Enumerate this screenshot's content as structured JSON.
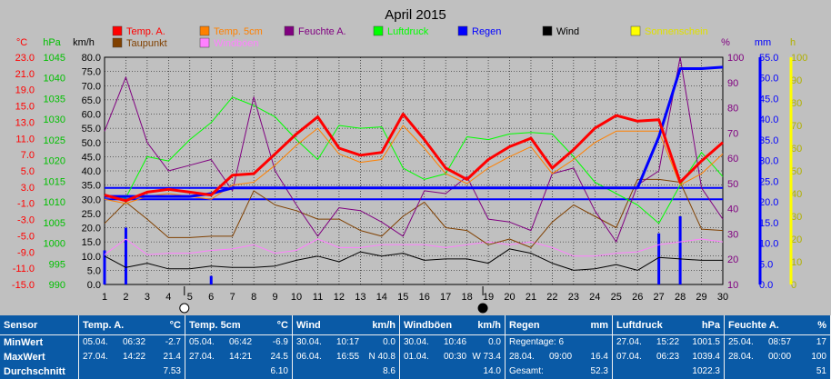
{
  "chart_data": {
    "type": "line",
    "title": "April 2015",
    "x": [
      1,
      2,
      3,
      4,
      5,
      6,
      7,
      8,
      9,
      10,
      11,
      12,
      13,
      14,
      15,
      16,
      17,
      18,
      19,
      20,
      21,
      22,
      23,
      24,
      25,
      26,
      27,
      28,
      29,
      30
    ],
    "axes": {
      "temp_c": {
        "label": "°C",
        "ticks": [
          "23.0",
          "21.0",
          "19.0",
          "15.0",
          "13.0",
          "11.0",
          "7.0",
          "5.0",
          "3.0",
          "-1.0",
          "-3.0",
          "-5.0",
          "-9.0",
          "-11.0",
          "-15.0"
        ],
        "color": "#ff0000"
      },
      "pressure_hpa": {
        "label": "hPa",
        "ticks": [
          "1045",
          "1040",
          "1035",
          "1030",
          "1025",
          "1020",
          "1015",
          "1010",
          "1005",
          "1000",
          "995",
          "990"
        ],
        "color": "#00c000"
      },
      "wind_kmh": {
        "label": "km/h",
        "ticks": [
          "80.0",
          "75.0",
          "70.0",
          "65.0",
          "60.0",
          "55.0",
          "50.0",
          "45.0",
          "40.0",
          "35.0",
          "30.0",
          "25.0",
          "20.0",
          "15.0",
          "10.0",
          "5.0",
          "0.0"
        ],
        "ylim": [
          0,
          80
        ],
        "color": "#000000"
      },
      "humidity_pct": {
        "label": "%",
        "ticks": [
          "100",
          "90",
          "80",
          "70",
          "60",
          "50",
          "40",
          "30",
          "20",
          "10"
        ],
        "ylim": [
          10,
          100
        ],
        "color": "#800080"
      },
      "rain_mm": {
        "label": "mm",
        "ticks": [
          "55.0",
          "50.0",
          "45.0",
          "40.0",
          "35.0",
          "30.0",
          "25.0",
          "20.0",
          "15.0",
          "10.0",
          "5.0",
          "0.0"
        ],
        "ylim": [
          0,
          55
        ],
        "color": "#0000ff"
      },
      "sun_h": {
        "label": "h",
        "ticks": [
          "100",
          "90",
          "80",
          "70",
          "60",
          "50",
          "40",
          "30",
          "20",
          "10",
          "0"
        ],
        "ylim": [
          0,
          100
        ],
        "color": "#ffff00"
      }
    },
    "legend": [
      {
        "name": "Temp. A.",
        "color": "#ff0000"
      },
      {
        "name": "Temp. 5cm",
        "color": "#ff8000"
      },
      {
        "name": "Feuchte A.",
        "color": "#800080"
      },
      {
        "name": "Luftdruck",
        "color": "#00ff00"
      },
      {
        "name": "Regen",
        "color": "#0000ff"
      },
      {
        "name": "Wind",
        "color": "#000000"
      },
      {
        "name": "Sonnenschein",
        "color": "#ffff00"
      },
      {
        "name": "Taupunkt",
        "color": "#804000"
      },
      {
        "name": "Windböen",
        "color": "#ff80ff"
      }
    ],
    "series": [
      {
        "name": "Temp. A.",
        "axis": "wind_kmh",
        "color": "#ff0000",
        "width": 3,
        "values": [
          31.5,
          29.5,
          32.5,
          33.5,
          32.5,
          31.5,
          38.5,
          39,
          46,
          53,
          59,
          48,
          45.5,
          46.5,
          60,
          51,
          41,
          37,
          44,
          48.5,
          51.5,
          41,
          47.5,
          55,
          59.5,
          57.5,
          58,
          36,
          43.5,
          50
        ]
      },
      {
        "name": "Temp. 5cm",
        "axis": "wind_kmh",
        "color": "#ff8000",
        "width": 1,
        "values": [
          30,
          28.5,
          31,
          32,
          31,
          30,
          35,
          36,
          42,
          49,
          55,
          46,
          43,
          44,
          56,
          48,
          39,
          35.5,
          41,
          45,
          48.5,
          39,
          44,
          50,
          54,
          54,
          54,
          35,
          39,
          46
        ]
      },
      {
        "name": "Feuchte A.",
        "axis": "wind_kmh",
        "color": "#800080",
        "width": 1,
        "values": [
          54,
          73,
          50,
          40,
          42,
          44,
          33,
          66,
          40,
          28,
          17,
          27,
          26,
          22,
          17,
          33,
          32,
          38,
          23,
          22,
          19,
          39,
          41,
          26,
          15,
          35,
          40,
          80,
          34,
          23
        ]
      },
      {
        "name": "Luftdruck",
        "axis": "wind_kmh",
        "color": "#00ff00",
        "width": 1,
        "values": [
          31,
          30.5,
          45,
          43.5,
          51,
          57,
          66,
          63,
          59,
          51,
          44,
          56,
          55,
          55.5,
          41,
          37,
          39,
          52,
          51,
          53,
          53.5,
          53,
          45,
          36,
          32,
          28,
          21.5,
          35,
          46.5,
          38
        ]
      },
      {
        "name": "Taupunkt",
        "axis": "wind_kmh",
        "color": "#804000",
        "width": 1,
        "values": [
          21.5,
          29,
          23,
          16.5,
          16.5,
          17,
          17,
          33,
          28,
          26,
          23,
          23,
          19,
          17,
          24,
          29,
          20,
          19,
          14,
          16,
          13,
          22,
          28,
          24,
          20,
          37,
          37,
          36,
          19.5,
          19
        ]
      },
      {
        "name": "Windböen",
        "axis": "wind_kmh",
        "color": "#ff80ff",
        "width": 1,
        "values": [
          10.5,
          16,
          10.5,
          11,
          11,
          12,
          12.5,
          14,
          11,
          12,
          16,
          13,
          13,
          14,
          14,
          14,
          13,
          14,
          15,
          14,
          15,
          13,
          10,
          10,
          11,
          11.5,
          14,
          15,
          16,
          15
        ]
      },
      {
        "name": "Wind",
        "axis": "wind_kmh",
        "color": "#000000",
        "width": 1,
        "values": [
          10,
          6,
          7.5,
          5.5,
          5.5,
          6.5,
          6,
          6,
          6.5,
          8.5,
          10,
          8,
          11.5,
          10,
          11,
          8.5,
          9,
          9,
          7.5,
          12.5,
          11,
          7.5,
          5,
          5.5,
          7,
          5,
          9.5,
          9,
          8.5,
          8.5
        ]
      },
      {
        "name": "Regen",
        "axis": "wind_kmh",
        "color": "#0000ff",
        "width": 3,
        "values": [
          31,
          31,
          31,
          31,
          31,
          32,
          34,
          34,
          34,
          34,
          34,
          34,
          34,
          34,
          34,
          34,
          34,
          34,
          34,
          34,
          34,
          34,
          34,
          34,
          34,
          34,
          52,
          76,
          76,
          76.5
        ]
      }
    ],
    "reference_lines": [
      {
        "name": "Regen",
        "axis": "wind_kmh",
        "y": 34,
        "color": "#0000ff"
      },
      {
        "name": "Regen",
        "axis": "wind_kmh",
        "y": 30,
        "color": "#0000ff"
      }
    ],
    "rain_bars": {
      "axis": "wind_kmh",
      "x": [
        1,
        2,
        6,
        27,
        28
      ],
      "values": [
        12,
        20,
        3,
        18,
        24
      ],
      "color": "#0000ff"
    },
    "moon_markers": [
      {
        "x": 5,
        "phase": "new"
      },
      {
        "x": 19,
        "phase": "full"
      }
    ]
  },
  "table": {
    "row_labels": [
      "Sensor",
      "MinWert",
      "MaxWert",
      "Durchschnitt"
    ],
    "columns": [
      {
        "title": "Temp. A.",
        "unit": "°C",
        "min": {
          "date": "05.04.",
          "time": "06:32",
          "val": "-2.7"
        },
        "max": {
          "date": "27.04.",
          "time": "14:22",
          "val": "21.4"
        },
        "avg": "7.53"
      },
      {
        "title": "Temp. 5cm",
        "unit": "°C",
        "min": {
          "date": "05.04.",
          "time": "06:42",
          "val": "-6.9"
        },
        "max": {
          "date": "27.04.",
          "time": "14:21",
          "val": "24.5"
        },
        "avg": "6.10"
      },
      {
        "title": "Wind",
        "unit": "km/h",
        "min": {
          "date": "30.04.",
          "time": "10:17",
          "val": "0.0"
        },
        "max": {
          "date": "06.04.",
          "time": "16:55",
          "val": "N 40.8"
        },
        "avg": "8.6"
      },
      {
        "title": "Windböen",
        "unit": "km/h",
        "min": {
          "date": "30.04.",
          "time": "10:46",
          "val": "0.0"
        },
        "max": {
          "date": "01.04.",
          "time": "00:30",
          "val": "W 73.4"
        },
        "avg": "14.0"
      },
      {
        "title": "Regen",
        "unit": "mm",
        "min": {
          "date": "Regentage: 6",
          "time": "",
          "val": ""
        },
        "max": {
          "date": "28.04.",
          "time": "09:00",
          "val": "16.4"
        },
        "avg_label": "Gesamt:",
        "avg": "52.3"
      },
      {
        "title": "Luftdruck",
        "unit": "hPa",
        "min": {
          "date": "27.04.",
          "time": "15:22",
          "val": "1001.5"
        },
        "max": {
          "date": "07.04.",
          "time": "06:23",
          "val": "1039.4"
        },
        "avg": "1022.3"
      },
      {
        "title": "Feuchte A.",
        "unit": "%",
        "min": {
          "date": "25.04.",
          "time": "08:57",
          "val": "17"
        },
        "max": {
          "date": "28.04.",
          "time": "00:00",
          "val": "100"
        },
        "avg": "51"
      }
    ]
  }
}
